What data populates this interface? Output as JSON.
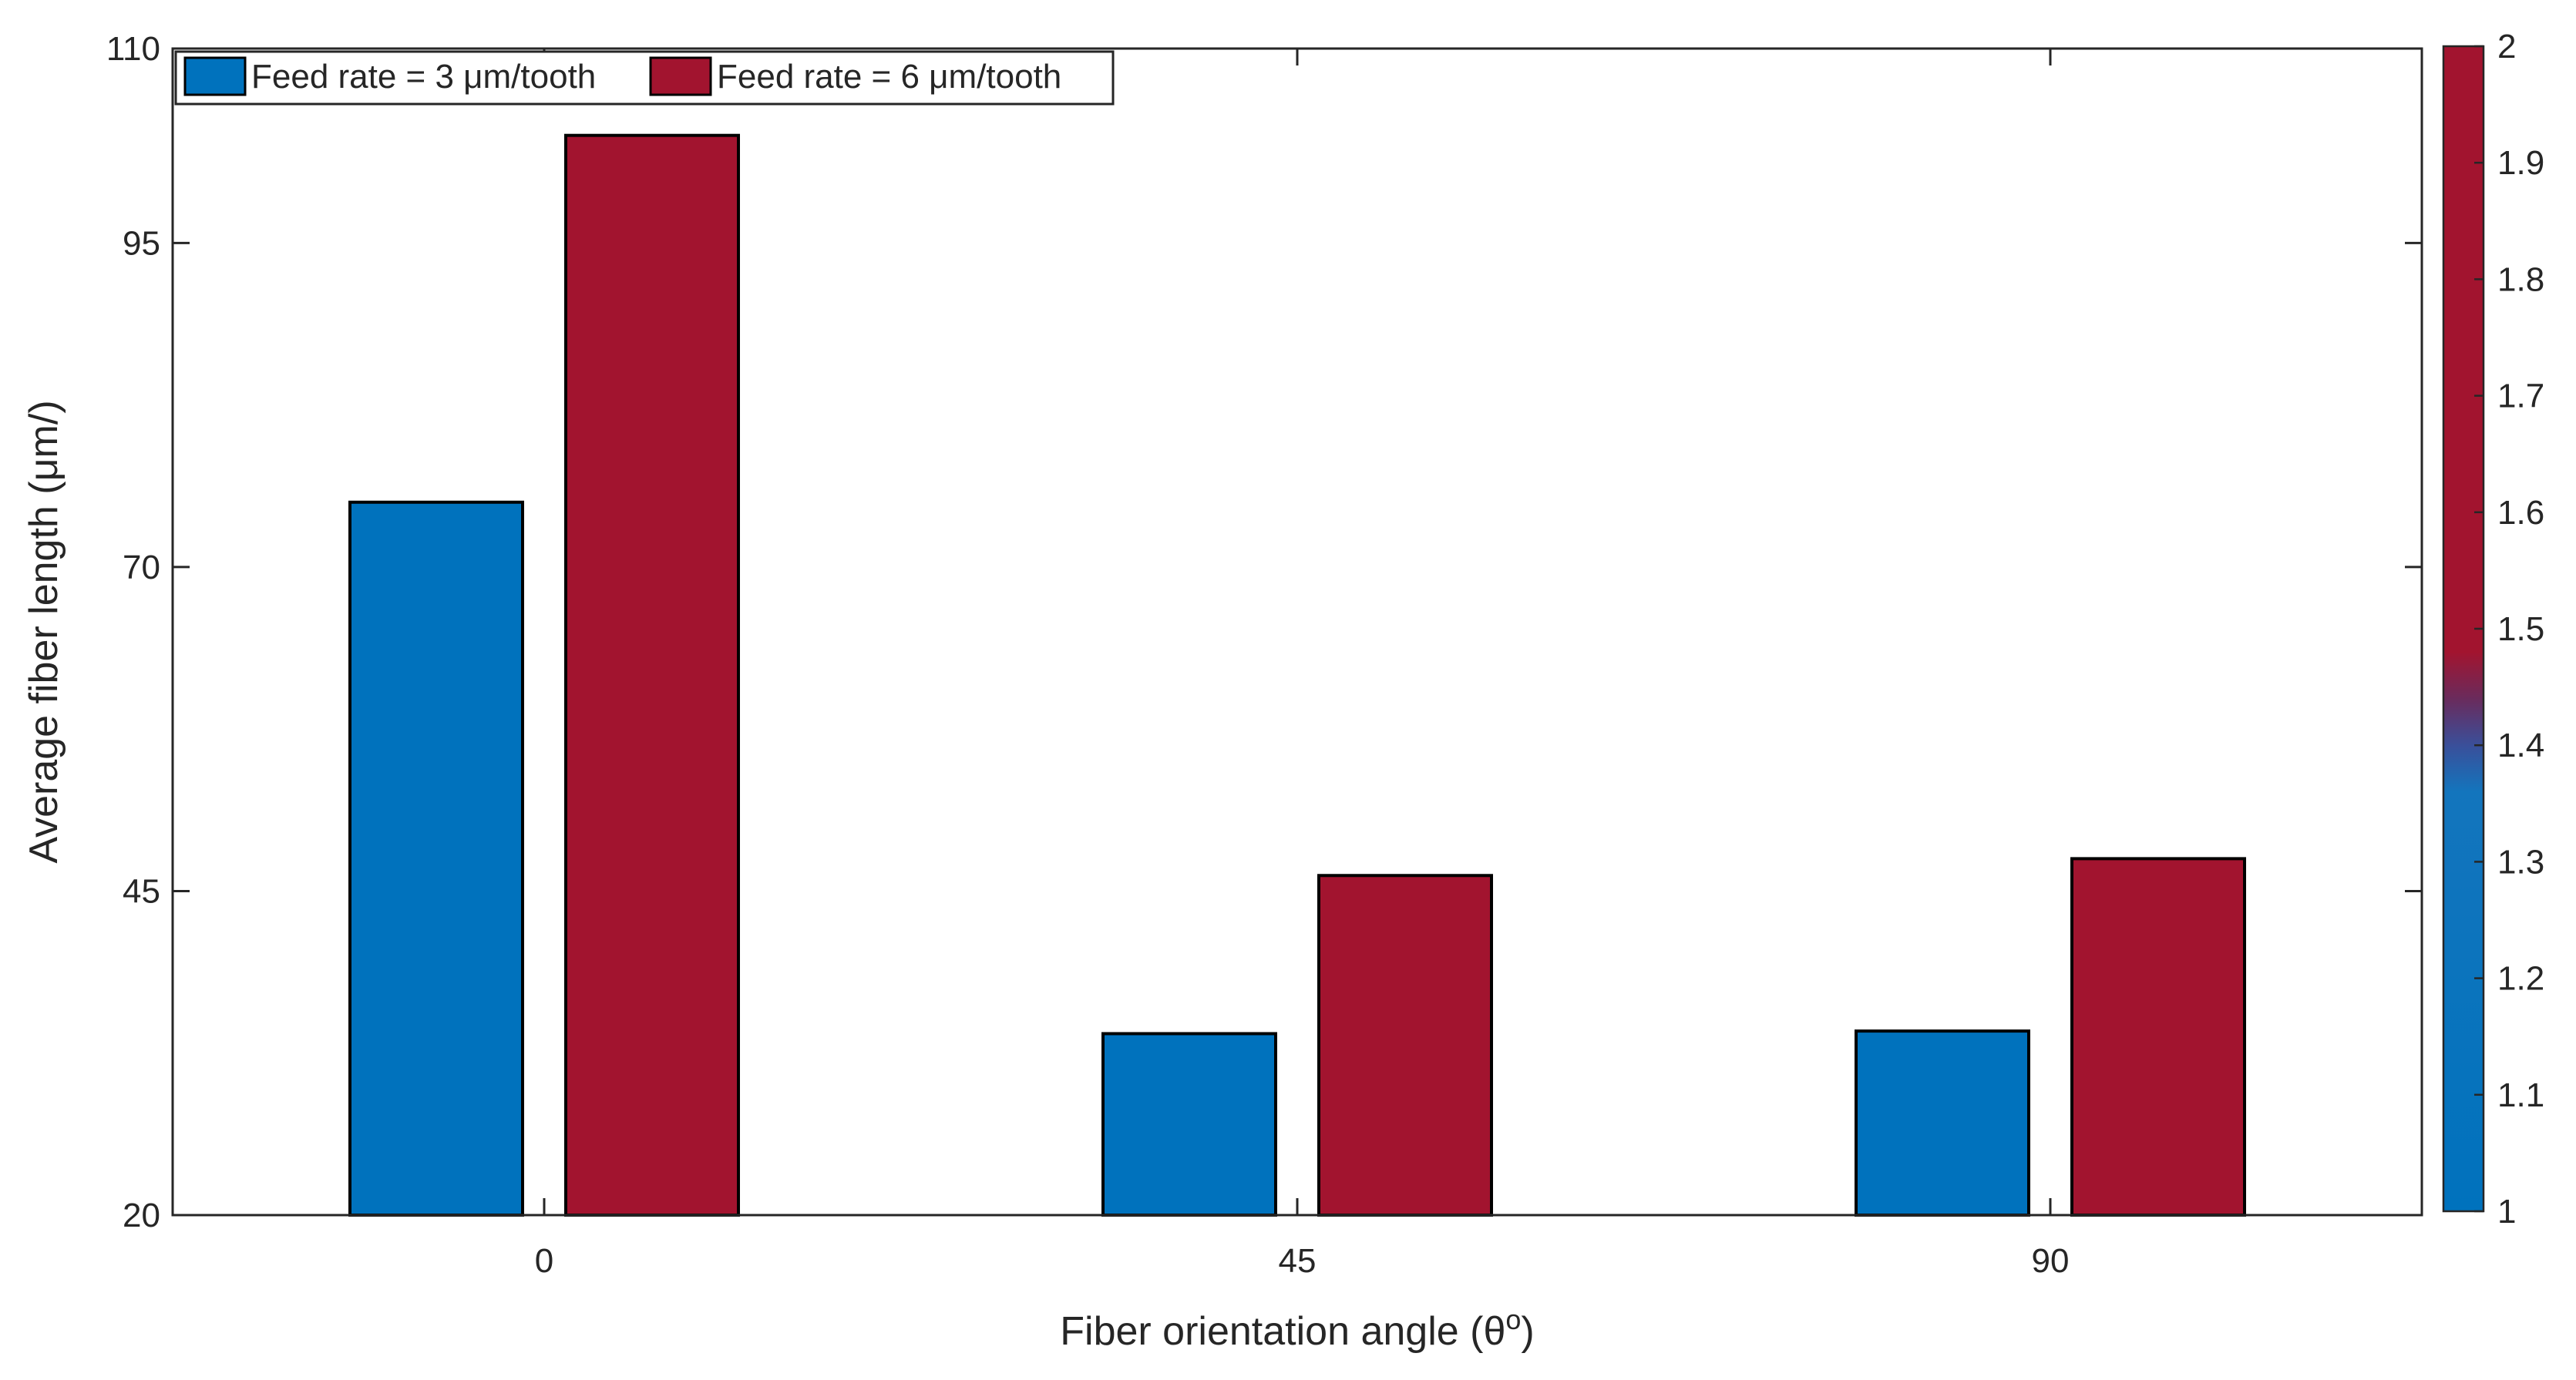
{
  "chart_data": {
    "type": "bar",
    "categories": [
      "0",
      "45",
      "90"
    ],
    "series": [
      {
        "name": "Feed rate = 3 μm/tooth",
        "color": "#0072bd",
        "values": [
          75,
          34,
          34.2
        ]
      },
      {
        "name": "Feed rate = 6 μm/tooth",
        "color": "#a2142f",
        "values": [
          103.3,
          46.2,
          47.5
        ]
      }
    ],
    "xlabel": "Fiber orientation angle (θ",
    "xlabel_sup": "o",
    "xlabel_end": ")",
    "ylabel": "Average fiber length  (μm/)",
    "ylim": [
      20,
      110
    ],
    "yticks": [
      "20",
      "45",
      "70",
      "95",
      "110"
    ],
    "grid": false,
    "legend": "top-left",
    "colorbar": {
      "range": [
        1,
        2
      ],
      "ticks": [
        "1",
        "1.1",
        "1.2",
        "1.3",
        "1.4",
        "1.5",
        "1.6",
        "1.7",
        "1.8",
        "1.9",
        "2"
      ]
    }
  }
}
